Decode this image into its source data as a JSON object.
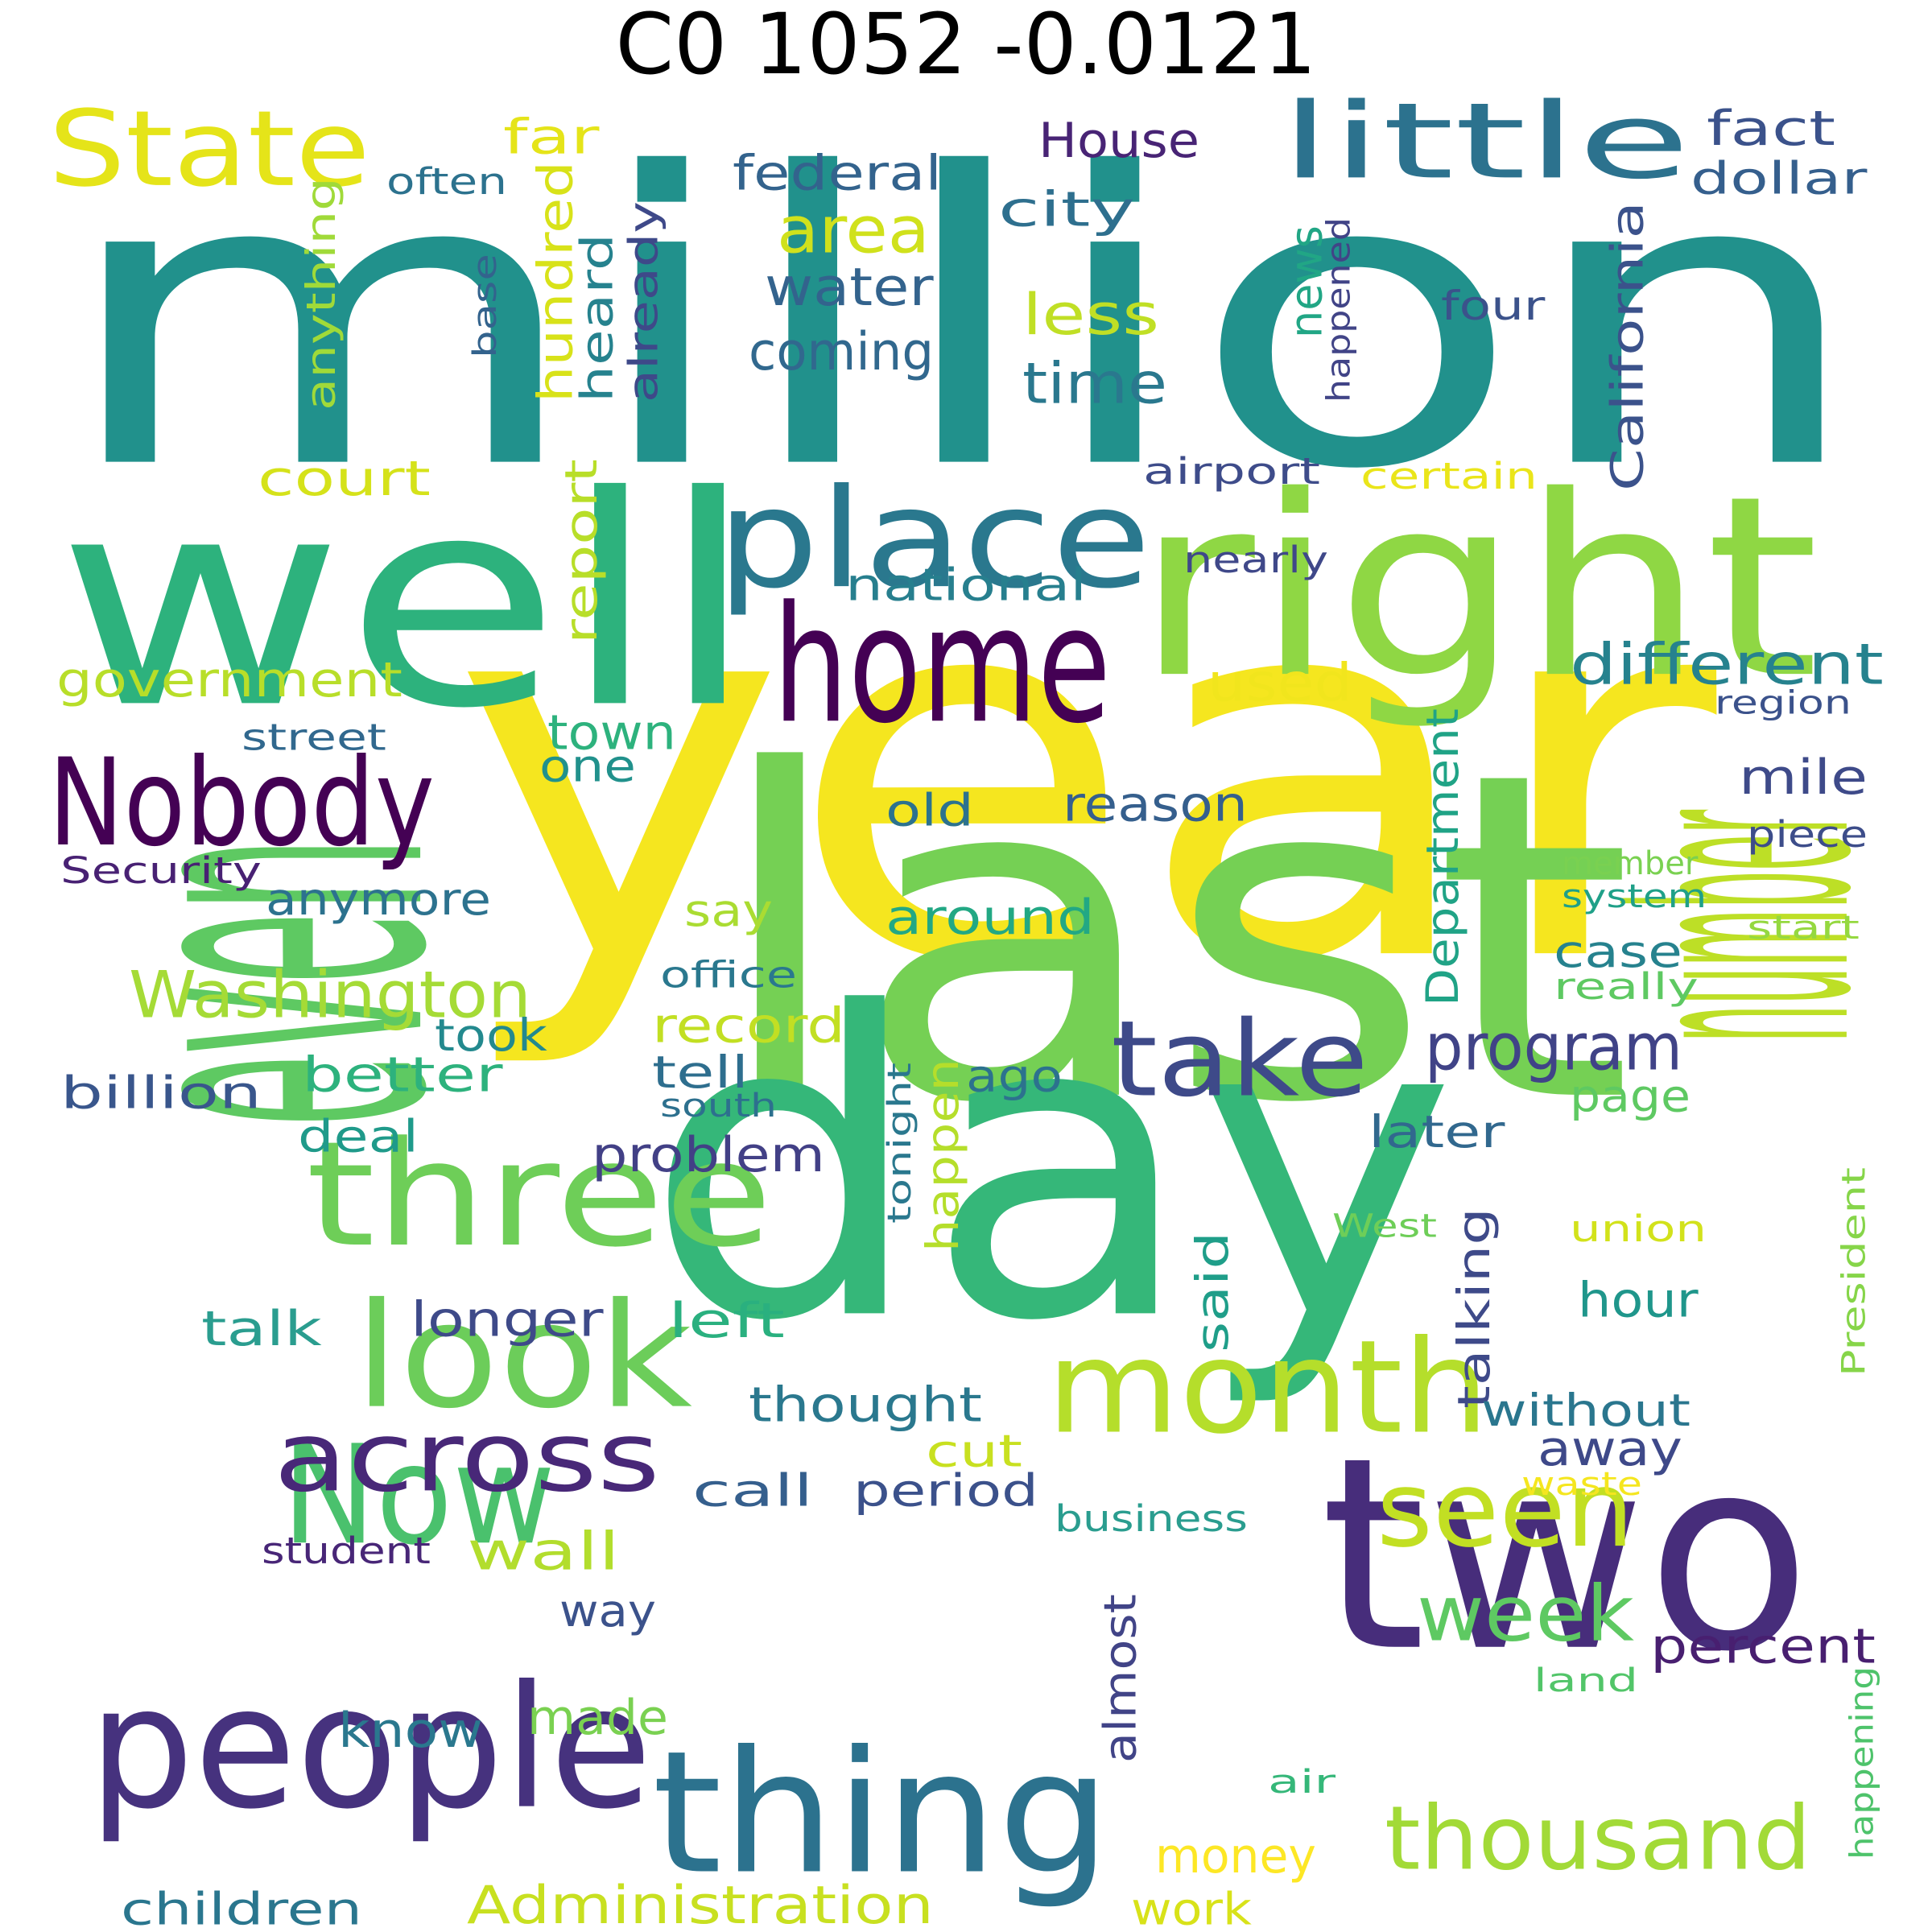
{
  "title": "C0  1052  -0.0121",
  "words": [
    {
      "text": "million",
      "color": "#21918c"
    },
    {
      "text": "year",
      "color": "#f5e61f"
    },
    {
      "text": "last",
      "color": "#75d054"
    },
    {
      "text": "even",
      "color": "#5ec962"
    },
    {
      "text": "day",
      "color": "#35b779"
    },
    {
      "text": "well",
      "color": "#2db27d"
    },
    {
      "text": "right",
      "color": "#8fd744"
    },
    {
      "text": "number",
      "color": "#bddf26"
    },
    {
      "text": "two",
      "color": "#472d7b"
    },
    {
      "text": "place",
      "color": "#2a788e"
    },
    {
      "text": "home",
      "color": "#440154"
    },
    {
      "text": "people",
      "color": "#46327e"
    },
    {
      "text": "thing",
      "color": "#2c728e"
    },
    {
      "text": "three",
      "color": "#6ece58"
    },
    {
      "text": "look",
      "color": "#6ccd5a"
    },
    {
      "text": "month",
      "color": "#b5de2b"
    },
    {
      "text": "Nobody",
      "color": "#440154"
    },
    {
      "text": "Now",
      "color": "#4ac16d"
    },
    {
      "text": "State",
      "color": "#e5e419"
    },
    {
      "text": "little",
      "color": "#2c728e"
    },
    {
      "text": "take",
      "color": "#3e4a89"
    },
    {
      "text": "across",
      "color": "#482878"
    },
    {
      "text": "seen",
      "color": "#c2df23"
    },
    {
      "text": "thousand",
      "color": "#a2da37"
    },
    {
      "text": "week",
      "color": "#5ec962"
    },
    {
      "text": "Washington",
      "color": "#a5db36"
    },
    {
      "text": "government",
      "color": "#b8de29"
    },
    {
      "text": "different",
      "color": "#26828e"
    },
    {
      "text": "program",
      "color": "#404387"
    },
    {
      "text": "Administration",
      "color": "#c8e020"
    },
    {
      "text": "children",
      "color": "#2a768e"
    },
    {
      "text": "area",
      "color": "#d0e11c"
    },
    {
      "text": "coming",
      "color": "#31688e"
    },
    {
      "text": "water",
      "color": "#33638d"
    },
    {
      "text": "city",
      "color": "#2e6f8e"
    },
    {
      "text": "time",
      "color": "#2a788e"
    },
    {
      "text": "less",
      "color": "#c0df25"
    },
    {
      "text": "federal",
      "color": "#33638d"
    },
    {
      "text": "House",
      "color": "#482475"
    },
    {
      "text": "fact",
      "color": "#3b528b"
    },
    {
      "text": "dollar",
      "color": "#355f8d"
    },
    {
      "text": "far",
      "color": "#e5e419"
    },
    {
      "text": "often",
      "color": "#2c728e"
    },
    {
      "text": "anything",
      "color": "#a0da39"
    },
    {
      "text": "base",
      "color": "#33638d"
    },
    {
      "text": "hundred",
      "color": "#d8e219"
    },
    {
      "text": "heard",
      "color": "#26828e"
    },
    {
      "text": "already",
      "color": "#3e4989"
    },
    {
      "text": "news",
      "color": "#21a685"
    },
    {
      "text": "happened",
      "color": "#414487"
    },
    {
      "text": "four",
      "color": "#3b528b"
    },
    {
      "text": "California",
      "color": "#3b528b"
    },
    {
      "text": "court",
      "color": "#d5e21a"
    },
    {
      "text": "report",
      "color": "#b8de29"
    },
    {
      "text": "national",
      "color": "#277f8e"
    },
    {
      "text": "airport",
      "color": "#3e4c8a"
    },
    {
      "text": "certain",
      "color": "#eae51a"
    },
    {
      "text": "nearly",
      "color": "#3f4889"
    },
    {
      "text": "used",
      "color": "#f1e51d"
    },
    {
      "text": "region",
      "color": "#3b528b"
    },
    {
      "text": "street",
      "color": "#31688e"
    },
    {
      "text": "town",
      "color": "#2db27d"
    },
    {
      "text": "one",
      "color": "#21918c"
    },
    {
      "text": "Department",
      "color": "#20a386"
    },
    {
      "text": "mile",
      "color": "#3e4a89"
    },
    {
      "text": "old",
      "color": "#2c728e"
    },
    {
      "text": "reason",
      "color": "#355f8d"
    },
    {
      "text": "piece",
      "color": "#3d4d8a"
    },
    {
      "text": "member",
      "color": "#7ad151"
    },
    {
      "text": "system",
      "color": "#1fa088"
    },
    {
      "text": "start",
      "color": "#95d840"
    },
    {
      "text": "Security",
      "color": "#482173"
    },
    {
      "text": "anymore",
      "color": "#2c728e"
    },
    {
      "text": "around",
      "color": "#22a884"
    },
    {
      "text": "say",
      "color": "#aadc32"
    },
    {
      "text": "case",
      "color": "#26828e"
    },
    {
      "text": "really",
      "color": "#5ec962"
    },
    {
      "text": "office",
      "color": "#2a788e"
    },
    {
      "text": "record",
      "color": "#c2df23"
    },
    {
      "text": "took",
      "color": "#23898e"
    },
    {
      "text": "better",
      "color": "#2db27d"
    },
    {
      "text": "tell",
      "color": "#2e6e8e"
    },
    {
      "text": "ago",
      "color": "#2c728e"
    },
    {
      "text": "happen",
      "color": "#b5de2b"
    },
    {
      "text": "billion",
      "color": "#39568c"
    },
    {
      "text": "south",
      "color": "#2d708e"
    },
    {
      "text": "page",
      "color": "#5ec962"
    },
    {
      "text": "later",
      "color": "#31688e"
    },
    {
      "text": "deal",
      "color": "#1f9a8a"
    },
    {
      "text": "problem",
      "color": "#424086"
    },
    {
      "text": "tonight",
      "color": "#2a788e"
    },
    {
      "text": "talking",
      "color": "#3e4a89"
    },
    {
      "text": "West",
      "color": "#6ece58"
    },
    {
      "text": "union",
      "color": "#d2e21b"
    },
    {
      "text": "President",
      "color": "#86d549"
    },
    {
      "text": "said",
      "color": "#1f9e89"
    },
    {
      "text": "hour",
      "color": "#1f968b"
    },
    {
      "text": "talk",
      "color": "#2a9d8f"
    },
    {
      "text": "longer",
      "color": "#3e4a89"
    },
    {
      "text": "left",
      "color": "#2ab07f"
    },
    {
      "text": "thought",
      "color": "#2a788e"
    },
    {
      "text": "without",
      "color": "#2a768e"
    },
    {
      "text": "away",
      "color": "#3e4989"
    },
    {
      "text": "cut",
      "color": "#c8e020"
    },
    {
      "text": "call",
      "color": "#355f8d"
    },
    {
      "text": "period",
      "color": "#3b518b"
    },
    {
      "text": "waste",
      "color": "#f5e61f"
    },
    {
      "text": "business",
      "color": "#2a9d8f"
    },
    {
      "text": "student",
      "color": "#482677"
    },
    {
      "text": "wall",
      "color": "#b2dd2d"
    },
    {
      "text": "way",
      "color": "#3b528b"
    },
    {
      "text": "almost",
      "color": "#414487"
    },
    {
      "text": "percent",
      "color": "#481f70"
    },
    {
      "text": "land",
      "color": "#52c569"
    },
    {
      "text": "know",
      "color": "#2a788e"
    },
    {
      "text": "made",
      "color": "#7ad151"
    },
    {
      "text": "air",
      "color": "#35b779"
    },
    {
      "text": "happening",
      "color": "#4ec36b"
    },
    {
      "text": "money",
      "color": "#fde725"
    },
    {
      "text": "work",
      "color": "#d8e219"
    }
  ]
}
